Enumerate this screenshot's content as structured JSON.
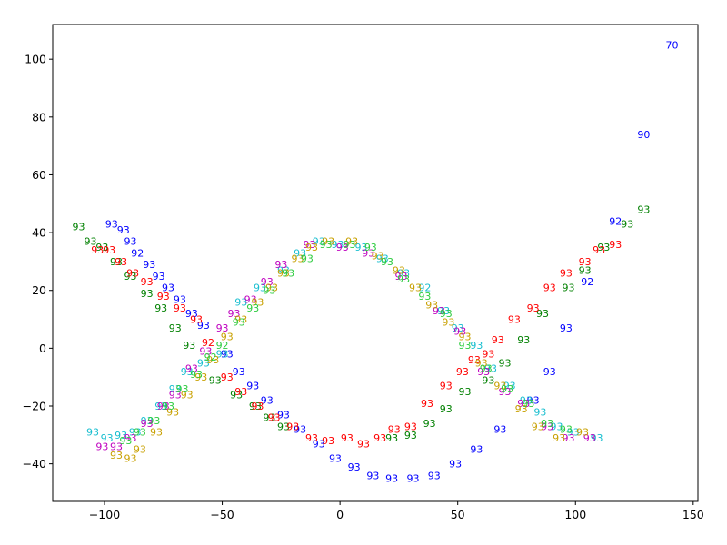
{
  "chart_data": {
    "type": "scatter",
    "title": "",
    "xlabel": "",
    "ylabel": "",
    "xlim": [
      -122,
      152
    ],
    "ylim": [
      -53,
      112
    ],
    "xticks": [
      -100,
      -50,
      0,
      50,
      100,
      150
    ],
    "yticks": [
      -40,
      -20,
      0,
      20,
      40,
      60,
      80,
      100
    ],
    "xtick_labels": [
      "−100",
      "−50",
      "0",
      "50",
      "100",
      "150"
    ],
    "ytick_labels": [
      "−40",
      "−20",
      "0",
      "20",
      "40",
      "60",
      "80",
      "100"
    ],
    "grid": false,
    "point_label": "93",
    "colors": {
      "b": "#0000ff",
      "g": "#008000",
      "r": "#ff0000",
      "c": "#17becf",
      "m": "#bf00bf",
      "y": "#c8a000",
      "l": "#2ecc40"
    },
    "series": [
      {
        "color": "b",
        "points": [
          [
            -97,
            43,
            "93"
          ],
          [
            -92,
            41,
            "93"
          ],
          [
            -89,
            37,
            "93"
          ],
          [
            -86,
            33,
            "92"
          ],
          [
            -81,
            29,
            "93"
          ],
          [
            -77,
            25,
            "93"
          ],
          [
            -73,
            21,
            "93"
          ],
          [
            -68,
            17,
            "93"
          ],
          [
            -63,
            12,
            "93"
          ],
          [
            -58,
            8,
            "93"
          ],
          [
            -48,
            -2,
            "93"
          ],
          [
            -43,
            -8,
            "93"
          ],
          [
            -37,
            -13,
            "93"
          ],
          [
            -31,
            -18,
            "93"
          ],
          [
            -24,
            -23,
            "93"
          ],
          [
            -17,
            -28,
            "93"
          ],
          [
            -9,
            -33,
            "93"
          ],
          [
            -2,
            -38,
            "93"
          ],
          [
            6,
            -41,
            "93"
          ],
          [
            14,
            -44,
            "93"
          ],
          [
            22,
            -45,
            "93"
          ],
          [
            31,
            -45,
            "93"
          ],
          [
            40,
            -44,
            "93"
          ],
          [
            49,
            -40,
            "93"
          ],
          [
            58,
            -35,
            "93"
          ],
          [
            68,
            -28,
            "93"
          ],
          [
            82,
            -18,
            "93"
          ],
          [
            89,
            -8,
            "93"
          ],
          [
            96,
            7,
            "93"
          ],
          [
            105,
            23,
            "92"
          ],
          [
            117,
            44,
            "92"
          ],
          [
            129,
            74,
            "90"
          ],
          [
            141,
            105,
            "70"
          ]
        ]
      },
      {
        "color": "g",
        "points": [
          [
            -111,
            42,
            "93"
          ],
          [
            -106,
            37,
            "93"
          ],
          [
            -101,
            35,
            "93"
          ],
          [
            -95,
            30,
            "93"
          ],
          [
            -89,
            25,
            "93"
          ],
          [
            -82,
            19,
            "93"
          ],
          [
            -76,
            14,
            "93"
          ],
          [
            -70,
            7,
            "93"
          ],
          [
            -64,
            1,
            "93"
          ],
          [
            -53,
            -11,
            "93"
          ],
          [
            -44,
            -16,
            "93"
          ],
          [
            -36,
            -20,
            "93"
          ],
          [
            -30,
            -24,
            "93"
          ],
          [
            -24,
            -27,
            "93"
          ],
          [
            22,
            -31,
            "93"
          ],
          [
            30,
            -30,
            "93"
          ],
          [
            38,
            -26,
            "93"
          ],
          [
            45,
            -21,
            "93"
          ],
          [
            53,
            -15,
            "93"
          ],
          [
            63,
            -11,
            "93"
          ],
          [
            70,
            -5,
            "93"
          ],
          [
            78,
            3,
            "93"
          ],
          [
            86,
            12,
            "93"
          ],
          [
            97,
            21,
            "93"
          ],
          [
            104,
            27,
            "93"
          ],
          [
            112,
            35,
            "93"
          ],
          [
            122,
            43,
            "93"
          ],
          [
            129,
            48,
            "93"
          ]
        ]
      },
      {
        "color": "r",
        "points": [
          [
            -103,
            34,
            "93"
          ],
          [
            -98,
            34,
            "93"
          ],
          [
            -93,
            30,
            "93"
          ],
          [
            -88,
            26,
            "93"
          ],
          [
            -82,
            23,
            "93"
          ],
          [
            -75,
            18,
            "93"
          ],
          [
            -68,
            14,
            "93"
          ],
          [
            -61,
            10,
            "93"
          ],
          [
            -56,
            2,
            "92"
          ],
          [
            -48,
            -10,
            "93"
          ],
          [
            -42,
            -15,
            "93"
          ],
          [
            -35,
            -20,
            "93"
          ],
          [
            -28,
            -24,
            "93"
          ],
          [
            -20,
            -27,
            "93"
          ],
          [
            -12,
            -31,
            "93"
          ],
          [
            -5,
            -32,
            "93"
          ],
          [
            3,
            -31,
            "93"
          ],
          [
            10,
            -33,
            "93"
          ],
          [
            17,
            -31,
            "93"
          ],
          [
            23,
            -28,
            "93"
          ],
          [
            30,
            -27,
            "93"
          ],
          [
            37,
            -19,
            "93"
          ],
          [
            45,
            -13,
            "93"
          ],
          [
            52,
            -8,
            "93"
          ],
          [
            57,
            -4,
            "93"
          ],
          [
            63,
            -2,
            "93"
          ],
          [
            67,
            3,
            "93"
          ],
          [
            74,
            10,
            "93"
          ],
          [
            82,
            14,
            "93"
          ],
          [
            89,
            21,
            "93"
          ],
          [
            96,
            26,
            "93"
          ],
          [
            104,
            30,
            "93"
          ],
          [
            110,
            34,
            "93"
          ],
          [
            117,
            36,
            "93"
          ]
        ]
      },
      {
        "color": "c",
        "points": [
          [
            -105,
            -29,
            "93"
          ],
          [
            -99,
            -31,
            "93"
          ],
          [
            -93,
            -30,
            "93"
          ],
          [
            -87,
            -29,
            "93"
          ],
          [
            -82,
            -25,
            "93"
          ],
          [
            -76,
            -20,
            "93"
          ],
          [
            -70,
            -14,
            "93"
          ],
          [
            -65,
            -8,
            "93"
          ],
          [
            -58,
            -5,
            "93"
          ],
          [
            -50,
            -2,
            "93"
          ],
          [
            -42,
            16,
            "93"
          ],
          [
            -34,
            21,
            "93"
          ],
          [
            -24,
            27,
            "93"
          ],
          [
            -17,
            33,
            "93"
          ],
          [
            -9,
            37,
            "93"
          ],
          [
            -1,
            36,
            "93"
          ],
          [
            9,
            35,
            "93"
          ],
          [
            18,
            31,
            "93"
          ],
          [
            27,
            26,
            "93"
          ],
          [
            36,
            21,
            "92"
          ],
          [
            44,
            13,
            "93"
          ],
          [
            50,
            7,
            "93"
          ],
          [
            58,
            1,
            "93"
          ],
          [
            64,
            -7,
            "93"
          ],
          [
            72,
            -13,
            "93"
          ],
          [
            79,
            -18,
            "93"
          ],
          [
            85,
            -22,
            "93"
          ],
          [
            92,
            -27,
            "93"
          ],
          [
            99,
            -29,
            "93"
          ],
          [
            109,
            -31,
            "93"
          ]
        ]
      },
      {
        "color": "m",
        "points": [
          [
            -101,
            -34,
            "93"
          ],
          [
            -95,
            -34,
            "93"
          ],
          [
            -89,
            -31,
            "93"
          ],
          [
            -82,
            -26,
            "93"
          ],
          [
            -75,
            -20,
            "93"
          ],
          [
            -70,
            -16,
            "93"
          ],
          [
            -63,
            -7,
            "93"
          ],
          [
            -57,
            -1,
            "93"
          ],
          [
            -50,
            7,
            "93"
          ],
          [
            -45,
            12,
            "93"
          ],
          [
            -38,
            17,
            "93"
          ],
          [
            -31,
            23,
            "93"
          ],
          [
            -25,
            29,
            "93"
          ],
          [
            -13,
            36,
            "93"
          ],
          [
            1,
            35,
            "93"
          ],
          [
            12,
            33,
            "93"
          ],
          [
            26,
            25,
            "93"
          ],
          [
            42,
            13,
            "93"
          ],
          [
            51,
            6,
            "93"
          ],
          [
            61,
            -8,
            "93"
          ],
          [
            70,
            -15,
            "93"
          ],
          [
            78,
            -19,
            "93"
          ],
          [
            88,
            -27,
            "93"
          ],
          [
            97,
            -31,
            "93"
          ],
          [
            106,
            -31,
            "93"
          ]
        ]
      },
      {
        "color": "y",
        "points": [
          [
            -95,
            -37,
            "93"
          ],
          [
            -89,
            -38,
            "93"
          ],
          [
            -85,
            -35,
            "93"
          ],
          [
            -78,
            -29,
            "93"
          ],
          [
            -71,
            -22,
            "93"
          ],
          [
            -65,
            -16,
            "93"
          ],
          [
            -59,
            -10,
            "93"
          ],
          [
            -54,
            -4,
            "93"
          ],
          [
            -48,
            4,
            "93"
          ],
          [
            -42,
            10,
            "93"
          ],
          [
            -35,
            16,
            "93"
          ],
          [
            -29,
            21,
            "93"
          ],
          [
            -24,
            26,
            "93"
          ],
          [
            -18,
            31,
            "93"
          ],
          [
            -12,
            35,
            "93"
          ],
          [
            -5,
            37,
            "93"
          ],
          [
            5,
            37,
            "93"
          ],
          [
            16,
            32,
            "93"
          ],
          [
            25,
            27,
            "93"
          ],
          [
            32,
            21,
            "93"
          ],
          [
            39,
            15,
            "93"
          ],
          [
            46,
            9,
            "93"
          ],
          [
            53,
            4,
            "93"
          ],
          [
            60,
            -5,
            "93"
          ],
          [
            68,
            -13,
            "93"
          ],
          [
            77,
            -21,
            "93"
          ],
          [
            84,
            -27,
            "93"
          ],
          [
            93,
            -31,
            "93"
          ],
          [
            103,
            -29,
            "93"
          ]
        ]
      },
      {
        "color": "l",
        "points": [
          [
            -91,
            -32,
            "93"
          ],
          [
            -85,
            -29,
            "93"
          ],
          [
            -79,
            -25,
            "93"
          ],
          [
            -73,
            -20,
            "93"
          ],
          [
            -67,
            -14,
            "93"
          ],
          [
            -61,
            -9,
            "93"
          ],
          [
            -55,
            -3,
            "92"
          ],
          [
            -50,
            1,
            "92"
          ],
          [
            -43,
            9,
            "93"
          ],
          [
            -37,
            14,
            "93"
          ],
          [
            -30,
            20,
            "93"
          ],
          [
            -22,
            26,
            "93"
          ],
          [
            -14,
            31,
            "93"
          ],
          [
            -6,
            36,
            "93"
          ],
          [
            4,
            36,
            "93"
          ],
          [
            13,
            35,
            "93"
          ],
          [
            20,
            30,
            "93"
          ],
          [
            27,
            24,
            "93"
          ],
          [
            36,
            18,
            "93"
          ],
          [
            45,
            12,
            "93"
          ],
          [
            53,
            1,
            "93"
          ],
          [
            62,
            -7,
            "93"
          ],
          [
            71,
            -14,
            "93"
          ],
          [
            80,
            -19,
            "93"
          ],
          [
            88,
            -26,
            "93"
          ],
          [
            96,
            -28,
            "93"
          ]
        ]
      }
    ]
  }
}
